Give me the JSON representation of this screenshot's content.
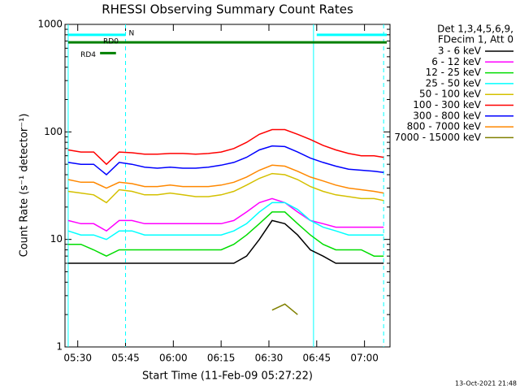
{
  "chart_data": {
    "type": "line",
    "log_y": true,
    "title": "RHESSI Observing Summary Count Rates",
    "x_label": "Start Time (11-Feb-09 05:27:22)",
    "y_label": "Count Rate (s⁻¹ detector⁻¹)",
    "legend_header": [
      "Det 1,3,4,5,6,9,",
      "FDecim 1, Att 0"
    ],
    "footer": "13-Oct-2021 21:48",
    "xlim": [
      "05:26",
      "07:08"
    ],
    "xticks": [
      "05:30",
      "05:45",
      "06:00",
      "06:15",
      "06:30",
      "06:45",
      "07:00"
    ],
    "ylim": [
      1,
      1000
    ],
    "yticks": [
      1,
      10,
      100,
      1000
    ],
    "x": [
      "05:27",
      "05:31",
      "05:35",
      "05:39",
      "05:43",
      "05:47",
      "05:51",
      "05:55",
      "05:59",
      "06:03",
      "06:07",
      "06:11",
      "06:15",
      "06:19",
      "06:23",
      "06:27",
      "06:31",
      "06:35",
      "06:39",
      "06:43",
      "06:47",
      "06:51",
      "06:55",
      "06:59",
      "07:03",
      "07:06"
    ],
    "series": [
      {
        "name": "3 - 6 keV",
        "color": "#000000",
        "values": [
          6,
          6,
          6,
          6,
          6,
          6,
          6,
          6,
          6,
          6,
          6,
          6,
          6,
          6,
          7,
          10,
          15,
          14,
          11,
          8,
          7,
          6,
          6,
          6,
          6,
          6
        ]
      },
      {
        "name": "6 - 12 keV",
        "color": "#ff00ff",
        "values": [
          15,
          14,
          14,
          12,
          15,
          15,
          14,
          14,
          14,
          14,
          14,
          14,
          14,
          15,
          18,
          22,
          24,
          22,
          18,
          15,
          14,
          13,
          13,
          13,
          13,
          13
        ]
      },
      {
        "name": "12 - 25 keV",
        "color": "#00dd00",
        "values": [
          9,
          9,
          8,
          7,
          8,
          8,
          8,
          8,
          8,
          8,
          8,
          8,
          8,
          9,
          11,
          14,
          18,
          18,
          14,
          11,
          9,
          8,
          8,
          8,
          7,
          7
        ]
      },
      {
        "name": "25 - 50 keV",
        "color": "#00ffff",
        "values": [
          12,
          11,
          11,
          10,
          12,
          12,
          11,
          11,
          11,
          11,
          11,
          11,
          11,
          12,
          14,
          18,
          22,
          22,
          19,
          15,
          13,
          12,
          11,
          11,
          11,
          11
        ]
      },
      {
        "name": "50 - 100 keV",
        "color": "#d4c000",
        "values": [
          28,
          27,
          26,
          22,
          29,
          28,
          26,
          26,
          27,
          26,
          25,
          25,
          26,
          28,
          32,
          37,
          41,
          40,
          36,
          31,
          28,
          26,
          25,
          24,
          24,
          23
        ]
      },
      {
        "name": "100 - 300 keV",
        "color": "#ff0000",
        "values": [
          68,
          65,
          65,
          50,
          65,
          64,
          62,
          62,
          63,
          63,
          62,
          63,
          65,
          70,
          80,
          95,
          105,
          105,
          95,
          85,
          75,
          68,
          63,
          60,
          60,
          58
        ]
      },
      {
        "name": "300 - 800 keV",
        "color": "#0000ff",
        "values": [
          52,
          50,
          50,
          40,
          52,
          50,
          47,
          46,
          47,
          46,
          46,
          47,
          49,
          52,
          58,
          68,
          74,
          73,
          65,
          57,
          52,
          48,
          45,
          44,
          43,
          42
        ]
      },
      {
        "name": "800 - 7000 keV",
        "color": "#ff8800",
        "values": [
          36,
          34,
          34,
          30,
          34,
          33,
          31,
          31,
          32,
          31,
          31,
          31,
          32,
          34,
          38,
          44,
          49,
          48,
          43,
          38,
          35,
          32,
          30,
          29,
          28,
          27
        ]
      },
      {
        "name": "7000 - 15000 keV",
        "color": "#808000",
        "values": [
          null,
          null,
          null,
          null,
          null,
          null,
          null,
          null,
          null,
          null,
          null,
          null,
          null,
          null,
          null,
          null,
          2.2,
          2.5,
          2,
          null,
          null,
          null,
          null,
          null,
          null,
          null
        ]
      }
    ],
    "flag_bars": [
      {
        "label": "N",
        "color": "#00ffff",
        "y": 800,
        "x": [
          "05:27",
          "05:45"
        ]
      },
      {
        "color": "#00ffff",
        "y": 800,
        "x": [
          "06:45",
          "07:07"
        ]
      },
      {
        "label": "RD0",
        "color": "#008000",
        "y": 680,
        "x": [
          "05:27",
          "07:07"
        ]
      },
      {
        "label": "RD4",
        "color": "#008000",
        "y": 540,
        "x": [
          "05:37",
          "05:42"
        ]
      }
    ],
    "vlines": [
      {
        "x": "05:27",
        "color": "#00ffff",
        "dashed": false
      },
      {
        "x": "05:45",
        "color": "#00ffff",
        "dashed": true
      },
      {
        "x": "06:44",
        "color": "#00ffff",
        "dashed": false
      },
      {
        "x": "07:06",
        "color": "#00ffff",
        "dashed": true
      }
    ]
  }
}
